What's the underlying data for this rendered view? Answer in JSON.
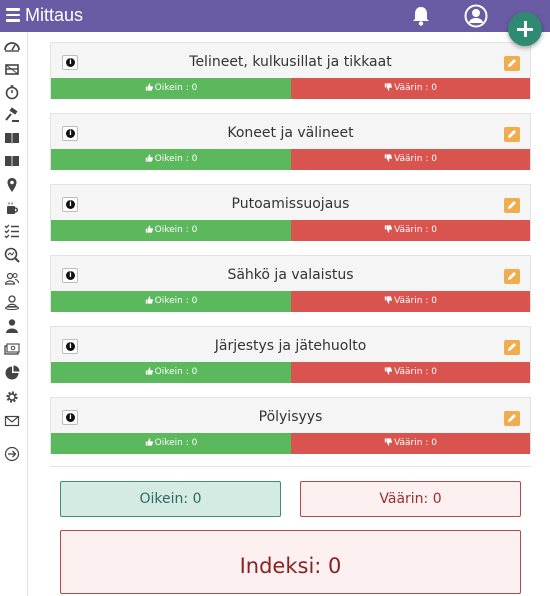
{
  "app": {
    "title": "Mittaus"
  },
  "header": {
    "menu_icon": "hamburger-icon",
    "notifications_icon": "bell-icon",
    "profile_icon": "user-circle-icon",
    "add_icon": "plus-icon"
  },
  "sidebar": {
    "items": [
      {
        "icon": "dashboard-icon"
      },
      {
        "icon": "scaffold-icon"
      },
      {
        "icon": "stopwatch-icon"
      },
      {
        "icon": "gavel-icon"
      },
      {
        "icon": "book-icon"
      },
      {
        "icon": "book-open-icon"
      },
      {
        "icon": "map-pin-icon"
      },
      {
        "icon": "coffee-icon"
      },
      {
        "icon": "checklist-icon"
      },
      {
        "icon": "search-analytics-icon"
      },
      {
        "icon": "users-icon"
      },
      {
        "icon": "person-location-icon"
      },
      {
        "icon": "user-icon"
      },
      {
        "icon": "cash-icon"
      },
      {
        "icon": "pie-chart-icon"
      },
      {
        "icon": "gear-icon"
      },
      {
        "icon": "mail-icon"
      },
      {
        "icon": "logout-icon"
      }
    ]
  },
  "categories": [
    {
      "title": "Telineet, kulkusillat ja tikkaat",
      "right_label": "Oikein : 0",
      "wrong_label": "Väärin : 0"
    },
    {
      "title": "Koneet ja välineet",
      "right_label": "Oikein : 0",
      "wrong_label": "Väärin : 0"
    },
    {
      "title": "Putoamissuojaus",
      "right_label": "Oikein : 0",
      "wrong_label": "Väärin : 0"
    },
    {
      "title": "Sähkö ja valaistus",
      "right_label": "Oikein : 0",
      "wrong_label": "Väärin : 0"
    },
    {
      "title": "Järjestys ja jätehuolto",
      "right_label": "Oikein : 0",
      "wrong_label": "Väärin : 0"
    },
    {
      "title": "Pölyisyys",
      "right_label": "Oikein : 0",
      "wrong_label": "Väärin : 0"
    }
  ],
  "summary": {
    "right": "Oikein: 0",
    "wrong": "Väärin: 0",
    "index": "Indeksi: 0"
  },
  "colors": {
    "header": "#6a5ba5",
    "fab": "#2e8a73",
    "right": "#5cb85c",
    "wrong": "#d9534f",
    "edit": "#f0ad4e"
  }
}
